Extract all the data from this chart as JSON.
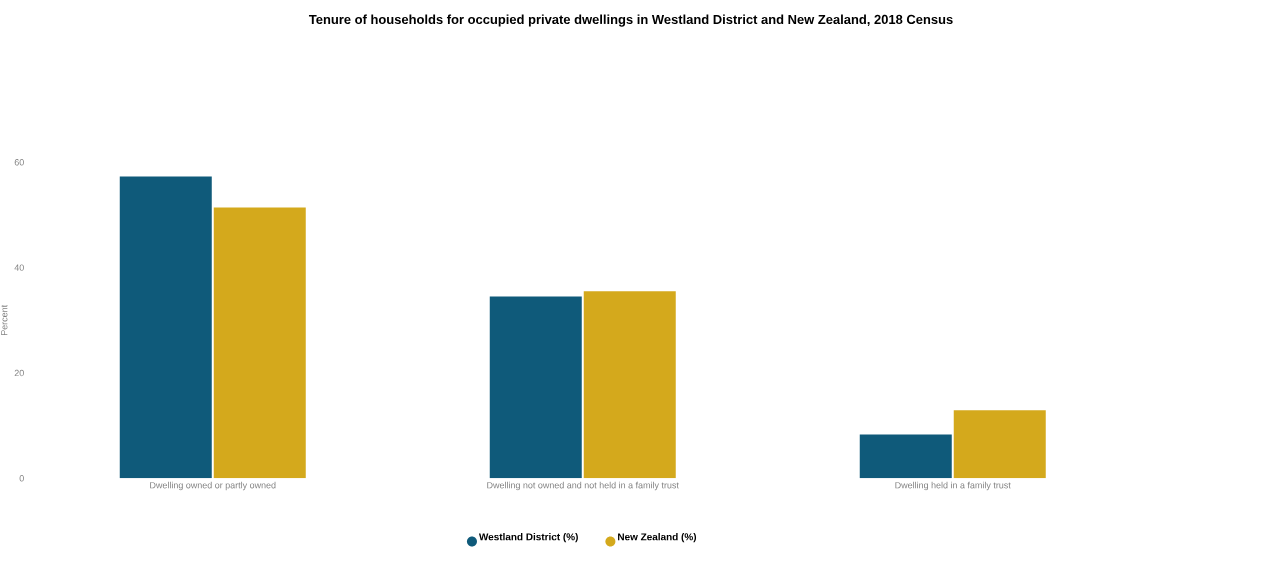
{
  "chart_data": {
    "type": "bar",
    "title": "Tenure of households for occupied private dwellings in Westland District and New Zealand, 2018 Census",
    "ylabel": "Percent",
    "categories": [
      "Dwelling owned or partly owned",
      "Dwelling not owned and not held in a family trust",
      "Dwelling held in a family trust"
    ],
    "series": [
      {
        "name": "Westland District (%)",
        "color": "#0f5a7a",
        "values": [
          57.3,
          34.5,
          8.3
        ]
      },
      {
        "name": "New Zealand (%)",
        "color": "#d4a91c",
        "values": [
          51.4,
          35.5,
          12.9
        ]
      }
    ],
    "ylim": [
      0,
      60
    ],
    "yticks": [
      0,
      20,
      40,
      60
    ],
    "grid": false,
    "legend": "bottom"
  }
}
